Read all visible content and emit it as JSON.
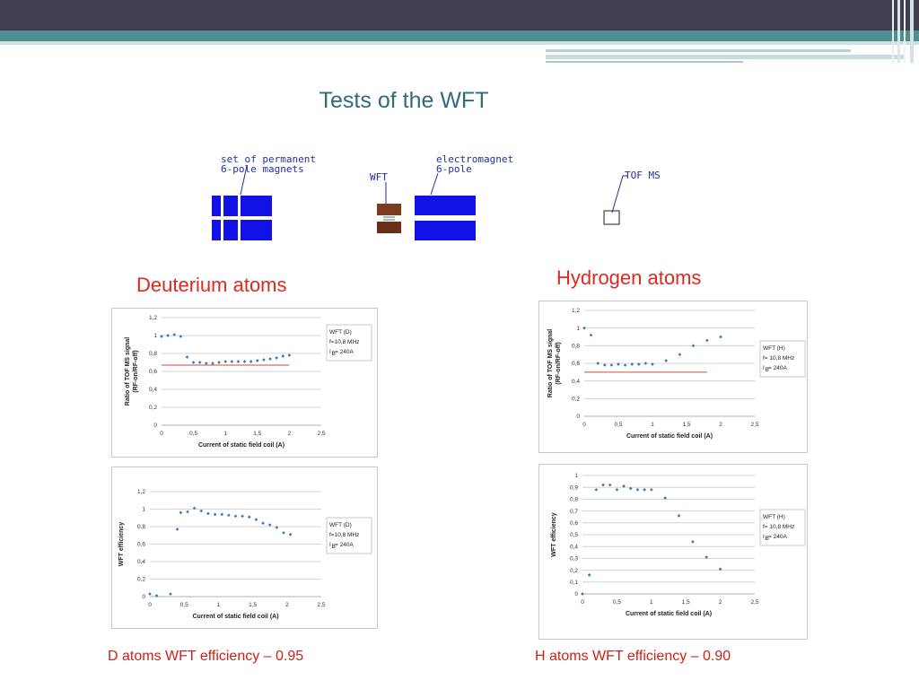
{
  "slide": {
    "title": "Tests of the WFT",
    "colors": {
      "header_dark": "#3f3f50",
      "header_teal": "#4f8f8f",
      "title": "#2f6b7c",
      "accent_red": "#e0281d",
      "marker": "#3a7ab8",
      "magnet_blue": "#1212e6",
      "wft_brown": "#7a3b1e"
    }
  },
  "diagram": {
    "magnets_label": "set of permanent\n6-pole magnets",
    "wft_label": "WFT",
    "electromagnet_label": "electromagnet\n6-pole",
    "tof_label": "TOF MS"
  },
  "columns": {
    "left_heading": "Deuterium atoms",
    "right_heading": "Hydrogen atoms",
    "left_caption": "D atoms WFT efficiency – 0.95",
    "right_caption": "H atoms WFT efficiency – 0.90"
  },
  "chart_data": [
    {
      "id": "d_ratio",
      "type": "scatter",
      "xlabel": "Current of static field coil (A)",
      "ylabel": [
        "Ratio of TOF MS signal",
        "(RF-on/RF-off)"
      ],
      "xlim": [
        0,
        2.5
      ],
      "ylim": [
        0,
        1.2
      ],
      "xticks": [
        0,
        0.5,
        1,
        1.5,
        2,
        2.5
      ],
      "xtick_labels": [
        "0",
        "0,5",
        "1",
        "1,5",
        "2",
        "2,5"
      ],
      "yticks": [
        0,
        0.2,
        0.4,
        0.6,
        0.8,
        1,
        1.2
      ],
      "ytick_labels": [
        "0",
        "0,2",
        "0,4",
        "0,6",
        "0,8",
        "1",
        "1,2"
      ],
      "grid": true,
      "legend": [
        "WFT (D)",
        "f=10,8 MHz",
        "I",
        "B",
        "= 240A"
      ],
      "reference_line": {
        "y": 0.67,
        "x": [
          0,
          2
        ],
        "color": "#d04a3a"
      },
      "points": [
        [
          0,
          0.99
        ],
        [
          0.1,
          1.0
        ],
        [
          0.2,
          1.01
        ],
        [
          0.3,
          0.99
        ],
        [
          0.4,
          0.76
        ],
        [
          0.5,
          0.7
        ],
        [
          0.6,
          0.7
        ],
        [
          0.7,
          0.69
        ],
        [
          0.8,
          0.69
        ],
        [
          0.9,
          0.7
        ],
        [
          1.0,
          0.71
        ],
        [
          1.1,
          0.71
        ],
        [
          1.2,
          0.71
        ],
        [
          1.3,
          0.71
        ],
        [
          1.4,
          0.71
        ],
        [
          1.5,
          0.72
        ],
        [
          1.6,
          0.73
        ],
        [
          1.7,
          0.74
        ],
        [
          1.8,
          0.75
        ],
        [
          1.9,
          0.77
        ],
        [
          2.0,
          0.78
        ]
      ]
    },
    {
      "id": "d_eff",
      "type": "scatter",
      "xlabel": "Current of static field coil  (A)",
      "ylabel": [
        "WFT efficiency"
      ],
      "xlim": [
        0,
        2.5
      ],
      "ylim": [
        0,
        1.2
      ],
      "xticks": [
        0,
        0.5,
        1,
        1.5,
        2,
        2.5
      ],
      "xtick_labels": [
        "0",
        "0,5",
        "1",
        "1,5",
        "2",
        "2,5"
      ],
      "yticks": [
        0,
        0.2,
        0.4,
        0.6,
        0.8,
        1,
        1.2
      ],
      "ytick_labels": [
        "0",
        "0,2",
        "0,4",
        "0,6",
        "0,8",
        "1",
        "1,2"
      ],
      "grid": true,
      "legend": [
        "WFT (D)",
        "f=10,8 MHz",
        "I",
        "B",
        "= 240A"
      ],
      "points": [
        [
          0,
          0.03
        ],
        [
          0.1,
          0.01
        ],
        [
          0.3,
          0.03
        ],
        [
          0.4,
          0.77
        ],
        [
          0.45,
          0.96
        ],
        [
          0.55,
          0.97
        ],
        [
          0.65,
          1.01
        ],
        [
          0.75,
          0.98
        ],
        [
          0.85,
          0.95
        ],
        [
          0.95,
          0.94
        ],
        [
          1.05,
          0.94
        ],
        [
          1.15,
          0.93
        ],
        [
          1.25,
          0.92
        ],
        [
          1.35,
          0.92
        ],
        [
          1.45,
          0.91
        ],
        [
          1.55,
          0.88
        ],
        [
          1.65,
          0.84
        ],
        [
          1.75,
          0.82
        ],
        [
          1.85,
          0.79
        ],
        [
          1.95,
          0.73
        ],
        [
          2.05,
          0.71
        ]
      ]
    },
    {
      "id": "h_ratio",
      "type": "scatter",
      "xlabel": "Current of static field coil (A)",
      "ylabel": [
        "Ratio of TOF MS signal",
        "(RF-on/RF-off)"
      ],
      "xlim": [
        0,
        2.5
      ],
      "ylim": [
        0,
        1.2
      ],
      "xticks": [
        0,
        0.5,
        1,
        1.5,
        2,
        2.5
      ],
      "xtick_labels": [
        "0",
        "0,5",
        "1",
        "1,5",
        "2",
        "2,5"
      ],
      "yticks": [
        0,
        0.2,
        0.4,
        0.6,
        0.8,
        1,
        1.2
      ],
      "ytick_labels": [
        "0",
        "0,2",
        "0,4",
        "0,6",
        "0,8",
        "1",
        "1,2"
      ],
      "grid": true,
      "legend": [
        "WFT (H)",
        "f= 10,8 MHz",
        "I",
        "B",
        "= 240A"
      ],
      "reference_line": {
        "y": 0.5,
        "x": [
          0,
          1.8
        ],
        "color": "#d04a3a"
      },
      "points": [
        [
          0,
          1.0
        ],
        [
          0.1,
          0.92
        ],
        [
          0.2,
          0.6
        ],
        [
          0.3,
          0.58
        ],
        [
          0.4,
          0.58
        ],
        [
          0.5,
          0.59
        ],
        [
          0.6,
          0.58
        ],
        [
          0.7,
          0.59
        ],
        [
          0.8,
          0.59
        ],
        [
          0.9,
          0.6
        ],
        [
          1.0,
          0.59
        ],
        [
          1.2,
          0.63
        ],
        [
          1.4,
          0.7
        ],
        [
          1.6,
          0.8
        ],
        [
          1.8,
          0.86
        ],
        [
          2.0,
          0.9
        ]
      ]
    },
    {
      "id": "h_eff",
      "type": "scatter",
      "xlabel": "Current of static field coil (A)",
      "ylabel": [
        "WFT efficiency"
      ],
      "xlim": [
        0,
        2.5
      ],
      "ylim": [
        0,
        1
      ],
      "xticks": [
        0,
        0.5,
        1,
        1.5,
        2,
        2.5
      ],
      "xtick_labels": [
        "0",
        "0,5",
        "1",
        "1,5",
        "2",
        "2,5"
      ],
      "yticks": [
        0,
        0.1,
        0.2,
        0.3,
        0.4,
        0.5,
        0.6,
        0.7,
        0.8,
        0.9,
        1
      ],
      "ytick_labels": [
        "0",
        "0,1",
        "0,2",
        "0,3",
        "0,4",
        "0,5",
        "0,6",
        "0,7",
        "0,8",
        "0,9",
        "1"
      ],
      "grid": true,
      "legend": [
        "WFT (H)",
        "f= 10,8 MHz",
        "I",
        "B",
        "= 240A"
      ],
      "points": [
        [
          0,
          0
        ],
        [
          0.1,
          0.16
        ],
        [
          0.2,
          0.88
        ],
        [
          0.3,
          0.92
        ],
        [
          0.4,
          0.92
        ],
        [
          0.5,
          0.88
        ],
        [
          0.6,
          0.91
        ],
        [
          0.7,
          0.89
        ],
        [
          0.8,
          0.88
        ],
        [
          0.9,
          0.88
        ],
        [
          1.0,
          0.88
        ],
        [
          1.2,
          0.81
        ],
        [
          1.4,
          0.66
        ],
        [
          1.6,
          0.44
        ],
        [
          1.8,
          0.31
        ],
        [
          2.0,
          0.21
        ]
      ]
    }
  ]
}
